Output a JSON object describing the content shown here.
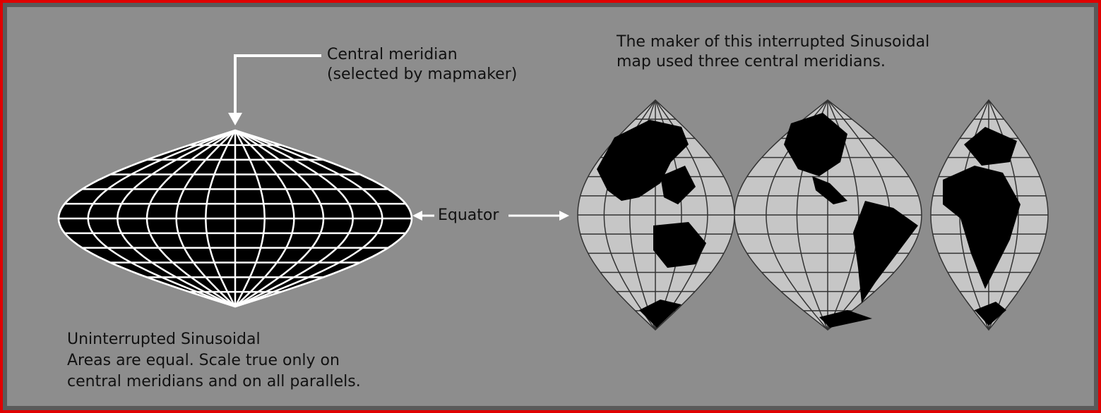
{
  "callouts": {
    "central_meridian": [
      "Central meridian",
      "(selected by mapmaker)"
    ],
    "interrupted": [
      "The maker of this interrupted Sinusoidal",
      "map used three central meridians."
    ],
    "equator": "Equator"
  },
  "caption": [
    "Uninterrupted Sinusoidal",
    "Areas are equal.  Scale true only on",
    "central meridians and on all parallels."
  ]
}
